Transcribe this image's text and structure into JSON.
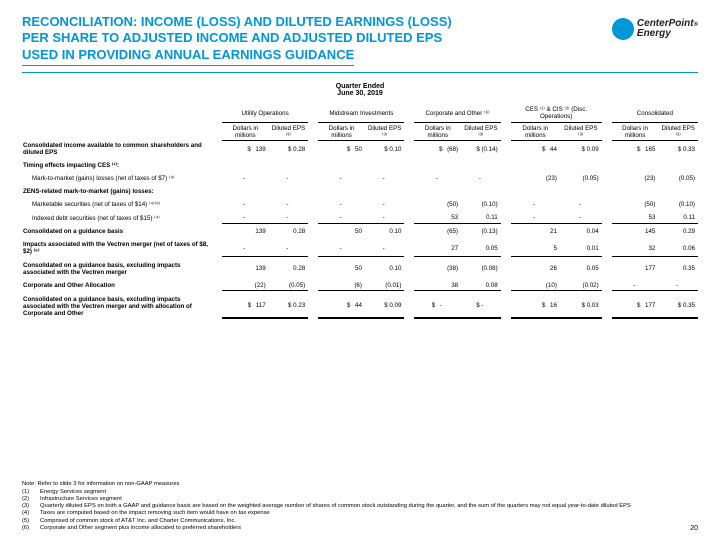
{
  "colors": {
    "accent": "#0097d6",
    "text": "#000000",
    "bg": "#ffffff"
  },
  "typography": {
    "title_fontsize": 13,
    "body_fontsize": 6.2,
    "notes_fontsize": 5.8
  },
  "logo": {
    "brand1": "CenterPoint",
    "brand2": "Energy",
    "dot": "®"
  },
  "title": {
    "line1": "RECONCILIATION: INCOME (LOSS) AND DILUTED EARNINGS (LOSS)",
    "line2": "PER SHARE TO ADJUSTED INCOME AND ADJUSTED DILUTED EPS",
    "line3": "USED IN PROVIDING ANNUAL EARNINGS GUIDANCE"
  },
  "period": {
    "l1": "Quarter Ended",
    "l2": "June 30, 2019"
  },
  "groups": [
    "Utility Operations",
    "Midstream Investments",
    "Corporate and Other ⁽⁶⁾",
    "CES ⁽¹⁾ & CIS ⁽²⁾ (Disc. Operations)",
    "Consolidated"
  ],
  "subcols": {
    "a": "Dollars in millions",
    "b": "Diluted EPS ⁽³⁾"
  },
  "rows": [
    {
      "lbl": "Consolidated income available to common shareholders and diluted EPS",
      "bold": true,
      "c": [
        [
          "$",
          "139",
          "$ 0.28"
        ],
        [
          "$",
          "50",
          "$ 0.10"
        ],
        [
          "$",
          "(68)",
          "$ (0.14)"
        ],
        [
          "$",
          "44",
          "$ 0.09"
        ],
        [
          "$",
          "165",
          "$ 0.33"
        ]
      ]
    },
    {
      "lbl": "Timing effects impacting CES ⁽¹⁾:",
      "bold": true,
      "c": null
    },
    {
      "lbl": "Mark-to-market (gains) losses (net of taxes of $7) ⁽⁴⁾",
      "indent": true,
      "c": [
        [
          "",
          "-",
          "-"
        ],
        [
          "",
          "-",
          "-"
        ],
        [
          "",
          "-",
          "-"
        ],
        [
          "",
          "(23)",
          "(0.05)"
        ],
        [
          "",
          "(23)",
          "(0.05)"
        ]
      ]
    },
    {
      "lbl": "ZENS-related mark-to-market (gains) losses:",
      "bold": true,
      "c": null
    },
    {
      "lbl": "Marketable securities (net of taxes of $14) ⁽⁴⁾⁽⁵⁾",
      "indent": true,
      "c": [
        [
          "",
          "-",
          "-"
        ],
        [
          "",
          "-",
          "-"
        ],
        [
          "",
          "(50)",
          "(0.10)"
        ],
        [
          "",
          "-",
          "-"
        ],
        [
          "",
          "(50)",
          "(0.10)"
        ]
      ]
    },
    {
      "lbl": "Indexed debt securities (net of taxes of $15) ⁽⁴⁾",
      "indent": true,
      "bb": true,
      "c": [
        [
          "",
          "-",
          "-"
        ],
        [
          "",
          "-",
          "-"
        ],
        [
          "",
          "53",
          "0.11"
        ],
        [
          "",
          "-",
          "-"
        ],
        [
          "",
          "53",
          "0.11"
        ]
      ]
    },
    {
      "lbl": "Consolidated on a guidance basis",
      "bold": true,
      "c": [
        [
          "",
          "139",
          "0.28"
        ],
        [
          "",
          "50",
          "0.10"
        ],
        [
          "",
          "(65)",
          "(0.13)"
        ],
        [
          "",
          "21",
          "0.04"
        ],
        [
          "",
          "145",
          "0.29"
        ]
      ]
    },
    {
      "lbl": "Impacts associated with the Vectren merger (net of taxes of $8, $2) ⁽⁶⁾",
      "bold": true,
      "bb": true,
      "c": [
        [
          "",
          "-",
          "-"
        ],
        [
          "",
          "-",
          "-"
        ],
        [
          "",
          "27",
          "0.05"
        ],
        [
          "",
          "5",
          "0.01"
        ],
        [
          "",
          "32",
          "0.06"
        ]
      ]
    },
    {
      "lbl": "Consolidated on a guidance basis, excluding impacts associated with the Vectren merger",
      "bold": true,
      "c": [
        [
          "",
          "139",
          "0.28"
        ],
        [
          "",
          "50",
          "0.10"
        ],
        [
          "",
          "(38)",
          "(0.08)"
        ],
        [
          "",
          "26",
          "0.05"
        ],
        [
          "",
          "177",
          "0.35"
        ]
      ]
    },
    {
      "lbl": "Corporate and Other Allocation",
      "bold": true,
      "bb": true,
      "c": [
        [
          "",
          "(22)",
          "(0.05)"
        ],
        [
          "",
          "(6)",
          "(0.01)"
        ],
        [
          "",
          "38",
          "0.08"
        ],
        [
          "",
          "(10)",
          "(0.02)"
        ],
        [
          "",
          "-",
          "-"
        ]
      ]
    },
    {
      "lbl": "Consolidated on a guidance basis, excluding impacts associated with the Vectren merger and with allocation of Corporate and Other",
      "bold": true,
      "db": true,
      "c": [
        [
          "$",
          "117",
          "$ 0.23"
        ],
        [
          "$",
          "44",
          "$ 0.09"
        ],
        [
          "$",
          "-",
          "$    -"
        ],
        [
          "$",
          "16",
          "$ 0.03"
        ],
        [
          "$",
          "177",
          "$ 0.35"
        ]
      ]
    }
  ],
  "notes": {
    "head": "Note:  Refer to slide 3 for information on non-GAAP measures",
    "items": [
      [
        "(1)",
        "Energy Services segment"
      ],
      [
        "(2)",
        "Infrastructure Services segment"
      ],
      [
        "(3)",
        "Quarterly diluted EPS on both a GAAP and guidance basis are based on the weighted average number of shares of common stock outstanding during the quarter, and the sum of the quarters may not equal year-to-date diluted EPS"
      ],
      [
        "(4)",
        "Taxes are computed based on the impact removing such item would have on tax expense"
      ],
      [
        "(5)",
        "Comprised of common stock of AT&T Inc. and Charter Communications, Inc."
      ],
      [
        "(6)",
        "Corporate and Other segment plus income allocated to preferred shareholders"
      ]
    ]
  },
  "page": "20"
}
